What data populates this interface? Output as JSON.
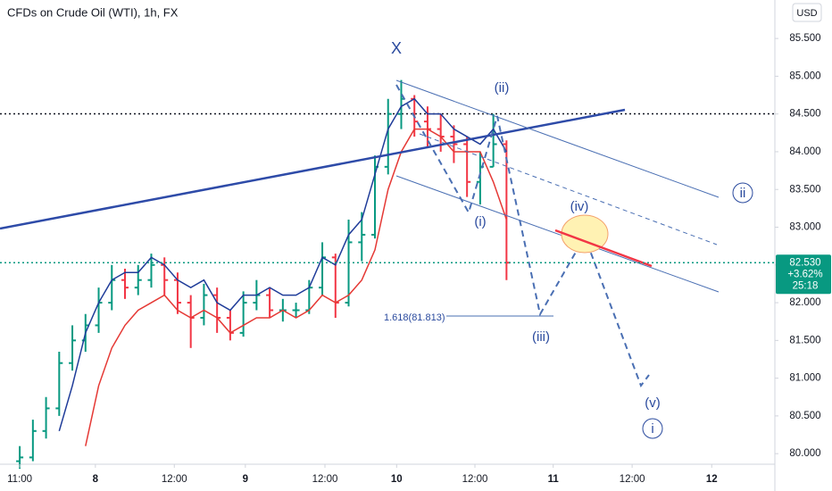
{
  "chart_data": {
    "type": "ohlc",
    "title": "CFDs on Crude Oil (WTI), 1h, FX",
    "currency": "USD",
    "bars": {
      "x": [
        0,
        2,
        4,
        6,
        8,
        10,
        12,
        14,
        16,
        18,
        20,
        22,
        24,
        26,
        28,
        30,
        32,
        34,
        36,
        38,
        40,
        42,
        44,
        46,
        48,
        50,
        52,
        54,
        56,
        58,
        60,
        62,
        64,
        66,
        68,
        70,
        72,
        74
      ],
      "open": [
        79.9,
        79.95,
        80.3,
        80.6,
        81.2,
        81.5,
        81.7,
        82.0,
        82.3,
        82.2,
        82.3,
        82.5,
        82.3,
        82.0,
        81.8,
        82.1,
        81.8,
        81.6,
        82.0,
        82.1,
        81.9,
        81.9,
        81.9,
        82.2,
        82.6,
        82.0,
        82.8,
        82.9,
        83.8,
        84.5,
        84.7,
        84.4,
        84.3,
        84.2,
        84.1,
        83.6,
        83.8,
        84.1
      ],
      "high": [
        80.1,
        80.45,
        80.75,
        81.35,
        81.7,
        81.85,
        82.2,
        82.5,
        82.45,
        82.5,
        82.65,
        82.6,
        82.4,
        82.1,
        82.25,
        82.2,
        81.9,
        82.15,
        82.3,
        82.2,
        82.05,
        82.0,
        82.3,
        82.8,
        82.65,
        83.1,
        83.2,
        83.95,
        84.7,
        84.95,
        84.75,
        84.6,
        84.5,
        84.35,
        84.2,
        84.0,
        84.5,
        84.15
      ],
      "low": [
        79.8,
        79.9,
        80.2,
        80.5,
        81.1,
        81.35,
        81.6,
        81.9,
        82.05,
        82.1,
        82.2,
        82.1,
        81.85,
        81.4,
        81.7,
        81.6,
        81.5,
        81.55,
        81.9,
        81.8,
        81.75,
        81.8,
        81.85,
        82.1,
        81.8,
        81.95,
        82.55,
        82.85,
        83.7,
        84.3,
        84.2,
        84.05,
        84.0,
        83.85,
        83.4,
        83.3,
        83.8,
        82.3
      ],
      "close": [
        79.95,
        80.3,
        80.6,
        81.2,
        81.5,
        81.7,
        82.0,
        82.3,
        82.2,
        82.3,
        82.5,
        82.3,
        82.0,
        81.8,
        82.1,
        81.8,
        81.6,
        82.0,
        82.1,
        81.9,
        81.9,
        81.9,
        82.2,
        82.6,
        82.0,
        82.8,
        82.9,
        83.8,
        84.5,
        84.7,
        84.4,
        84.3,
        84.2,
        84.1,
        83.6,
        83.8,
        84.1,
        82.53
      ]
    },
    "up_color": "#089981",
    "down_color": "#f23645",
    "series": [
      {
        "color": "#1f3c99",
        "values": [
          null,
          null,
          null,
          80.3,
          80.9,
          81.6,
          82.0,
          82.3,
          82.4,
          82.4,
          82.6,
          82.5,
          82.3,
          82.2,
          82.3,
          82.0,
          81.9,
          82.1,
          82.1,
          82.2,
          82.1,
          82.1,
          82.2,
          82.6,
          82.5,
          82.9,
          83.1,
          83.7,
          84.3,
          84.6,
          84.7,
          84.5,
          84.5,
          84.3,
          84.2,
          84.1,
          84.3,
          84.0
        ]
      },
      {
        "color": "#e53935",
        "values": [
          null,
          null,
          null,
          null,
          null,
          80.1,
          80.9,
          81.4,
          81.7,
          81.9,
          82.0,
          82.1,
          81.9,
          81.8,
          81.9,
          81.8,
          81.6,
          81.7,
          81.8,
          81.8,
          81.9,
          81.8,
          81.9,
          82.1,
          82.0,
          82.1,
          82.3,
          82.7,
          83.5,
          84.0,
          84.3,
          84.3,
          84.2,
          84.0,
          84.0,
          84.0,
          83.6,
          83.1
        ]
      }
    ],
    "last_price": {
      "value": 82.53,
      "label": "82.530"
    },
    "change": "+3.62%",
    "countdown": "25:18",
    "xlim": [
      -3,
      114.8
    ],
    "ylim": [
      79.86,
      86.01
    ],
    "xticks": [
      {
        "value": 0,
        "label": "11:00"
      },
      {
        "value": 11.5,
        "label": "8"
      },
      {
        "value": 23.5,
        "label": "12:00"
      },
      {
        "value": 34.3,
        "label": "9"
      },
      {
        "value": 46.4,
        "label": "12:00"
      },
      {
        "value": 57.3,
        "label": "10"
      },
      {
        "value": 69.2,
        "label": "12:00"
      },
      {
        "value": 81.1,
        "label": "11"
      },
      {
        "value": 93.1,
        "label": "12:00"
      },
      {
        "value": 105.2,
        "label": "12"
      }
    ],
    "yticks": [
      {
        "value": 80,
        "label": "80.000"
      },
      {
        "value": 80.5,
        "label": "80.500"
      },
      {
        "value": 81,
        "label": "81.000"
      },
      {
        "value": 81.5,
        "label": "81.500"
      },
      {
        "value": 82,
        "label": "82.000"
      },
      {
        "value": 82.5,
        "label": "82.500"
      },
      {
        "value": 83,
        "label": "83.000"
      },
      {
        "value": 83.5,
        "label": "83.500"
      },
      {
        "value": 84,
        "label": "84.000"
      },
      {
        "value": 84.5,
        "label": "84.500"
      },
      {
        "value": 85,
        "label": "85.000"
      },
      {
        "value": 85.5,
        "label": "85.500"
      }
    ],
    "annotations": {
      "x": "X",
      "ii_minor": "(ii)",
      "i_minor": "(i)",
      "iii_minor": "(iii)",
      "iv_minor": "(iv)",
      "v_minor": "(v)",
      "ii_major": "ii",
      "i_major": "i",
      "fib": "1.618(81.813)"
    }
  }
}
